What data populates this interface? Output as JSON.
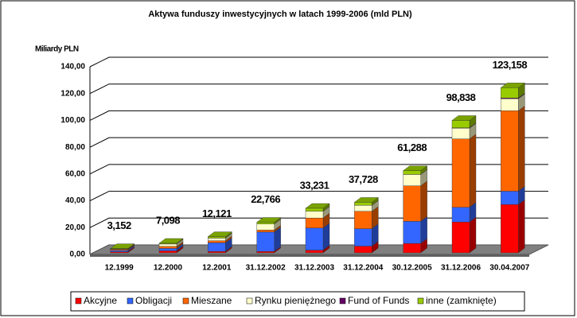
{
  "chart_data": {
    "type": "bar3d_stacked",
    "title": "Aktywa funduszy inwestycyjnych w latach 1999-2006 (mld PLN)",
    "y_axis_label": "Miliardy PLN",
    "categories": [
      "12.1999",
      "12.2000",
      "12.2001",
      "31.12.2002",
      "31.12.2003",
      "31.12.2004",
      "30.12.2005",
      "31.12.2006",
      "30.04.2007"
    ],
    "series": [
      {
        "name": "Akcyjne",
        "color": "#ff0000",
        "values": [
          0.8,
          1.5,
          1.0,
          1.0,
          2.0,
          5.0,
          7.0,
          23.0,
          36.0
        ]
      },
      {
        "name": "Obligacji",
        "color": "#3366ff",
        "values": [
          1.0,
          1.8,
          6.5,
          14.5,
          16.5,
          13.0,
          16.5,
          11.0,
          10.0
        ]
      },
      {
        "name": "Mieszane",
        "color": "#ff6600",
        "values": [
          0.7,
          1.5,
          1.5,
          1.5,
          7.5,
          13.0,
          26.5,
          51.0,
          60.0
        ]
      },
      {
        "name": "Rynku pieniężnego",
        "color": "#ffffcc",
        "values": [
          0.4,
          1.8,
          2.0,
          4.5,
          5.0,
          4.5,
          8.5,
          8.0,
          9.0
        ]
      },
      {
        "name": "Fund of Funds",
        "color": "#660066",
        "values": [
          0,
          0,
          0,
          0,
          0,
          0,
          0,
          0.3,
          0.5
        ]
      },
      {
        "name": "inne (zamknięte)",
        "color": "#99cc00",
        "values": [
          0.25,
          0.5,
          1.1,
          1.3,
          2.2,
          2.2,
          2.8,
          5.5,
          7.7
        ]
      }
    ],
    "totals": {
      "values": [
        3.152,
        7.098,
        12.121,
        22.766,
        33.231,
        37.728,
        61.288,
        98.838,
        123.158
      ],
      "value_labels": [
        "3,152",
        "7,098",
        "12,121",
        "22,766",
        "33,231",
        "37,728",
        "61,288",
        "98,838",
        "123,158"
      ]
    },
    "ylim": [
      0,
      140
    ],
    "yticks": [
      {
        "value": 0,
        "label": "0,00"
      },
      {
        "value": 20,
        "label": "20,00"
      },
      {
        "value": 40,
        "label": "40,00"
      },
      {
        "value": 60,
        "label": "60,00"
      },
      {
        "value": 80,
        "label": "80,00"
      },
      {
        "value": 100,
        "label": "100,00"
      },
      {
        "value": 120,
        "label": "120,00"
      },
      {
        "value": 140,
        "label": "140,00"
      }
    ],
    "grid": true,
    "legend": "bottom"
  }
}
